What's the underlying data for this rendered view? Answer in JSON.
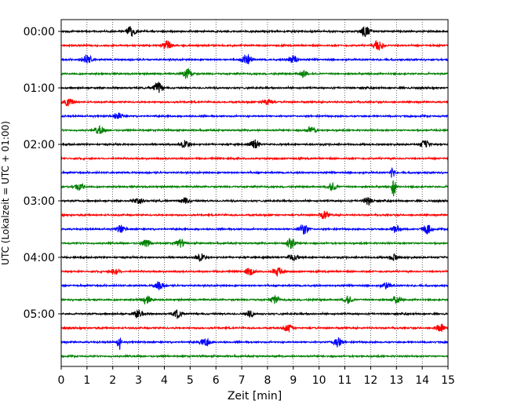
{
  "chart_data": {
    "type": "line",
    "xlabel": "Zeit  [min]",
    "ylabel": "UTC (Lokalzeit = UTC + 01:00)",
    "xlim": [
      0,
      15
    ],
    "x_ticks": [
      0,
      1,
      2,
      3,
      4,
      5,
      6,
      7,
      8,
      9,
      10,
      11,
      12,
      13,
      14,
      15
    ],
    "x_tick_labels": [
      "0",
      "1",
      "2",
      "3",
      "4",
      "5",
      "6",
      "7",
      "8",
      "9",
      "10",
      "11",
      "12",
      "13",
      "14",
      "15"
    ],
    "y_tick_labels": [
      "00:00",
      "01:00",
      "02:00",
      "03:00",
      "04:00",
      "05:00"
    ],
    "grid": "vertical dotted at each minute",
    "traces_per_hour": 4,
    "trace_minutes": 15,
    "trace_colors": [
      "#000000",
      "#ff0000",
      "#0000ff",
      "#008000"
    ],
    "series": [
      {
        "start": "00:00",
        "color": "#000000",
        "events": [
          [
            2.7,
            0.5
          ],
          [
            11.8,
            0.5
          ]
        ]
      },
      {
        "start": "00:15",
        "color": "#ff0000",
        "events": [
          [
            4.1,
            0.45
          ],
          [
            12.3,
            0.55
          ]
        ]
      },
      {
        "start": "00:30",
        "color": "#0000ff",
        "events": [
          [
            1.0,
            0.5
          ],
          [
            7.2,
            0.6
          ],
          [
            9.0,
            0.4
          ]
        ]
      },
      {
        "start": "00:45",
        "color": "#008000",
        "events": [
          [
            4.9,
            0.5
          ],
          [
            9.4,
            0.3
          ]
        ]
      },
      {
        "start": "01:00",
        "color": "#000000",
        "events": [
          [
            3.75,
            0.55
          ]
        ]
      },
      {
        "start": "01:15",
        "color": "#ff0000",
        "events": [
          [
            0.3,
            0.4
          ],
          [
            8.0,
            0.35
          ]
        ]
      },
      {
        "start": "01:30",
        "color": "#0000ff",
        "events": [
          [
            2.2,
            0.3
          ]
        ]
      },
      {
        "start": "01:45",
        "color": "#008000",
        "events": [
          [
            1.5,
            0.4
          ],
          [
            9.7,
            0.35
          ]
        ]
      },
      {
        "start": "02:00",
        "color": "#000000",
        "events": [
          [
            4.8,
            0.4
          ],
          [
            7.5,
            0.45
          ],
          [
            14.1,
            0.35
          ]
        ]
      },
      {
        "start": "02:15",
        "color": "#ff0000",
        "events": []
      },
      {
        "start": "02:30",
        "color": "#0000ff",
        "events": [
          [
            12.85,
            0.7
          ]
        ]
      },
      {
        "start": "02:45",
        "color": "#008000",
        "events": [
          [
            0.7,
            0.35
          ],
          [
            10.5,
            0.35
          ],
          [
            12.9,
            1.2
          ]
        ]
      },
      {
        "start": "03:00",
        "color": "#000000",
        "events": [
          [
            3.0,
            0.3
          ],
          [
            4.8,
            0.3
          ],
          [
            11.9,
            0.35
          ]
        ]
      },
      {
        "start": "03:15",
        "color": "#ff0000",
        "events": [
          [
            10.2,
            0.35
          ]
        ]
      },
      {
        "start": "03:30",
        "color": "#0000ff",
        "events": [
          [
            2.3,
            0.35
          ],
          [
            9.4,
            0.5
          ],
          [
            13.0,
            0.35
          ],
          [
            14.2,
            0.4
          ]
        ]
      },
      {
        "start": "03:45",
        "color": "#008000",
        "events": [
          [
            3.3,
            0.35
          ],
          [
            4.6,
            0.4
          ],
          [
            8.9,
            0.5
          ]
        ]
      },
      {
        "start": "04:00",
        "color": "#000000",
        "events": [
          [
            5.4,
            0.4
          ],
          [
            9.0,
            0.35
          ],
          [
            12.9,
            0.3
          ]
        ]
      },
      {
        "start": "04:15",
        "color": "#ff0000",
        "events": [
          [
            2.1,
            0.3
          ],
          [
            7.3,
            0.35
          ],
          [
            8.4,
            0.45
          ]
        ]
      },
      {
        "start": "04:30",
        "color": "#0000ff",
        "events": [
          [
            3.8,
            0.35
          ],
          [
            12.6,
            0.3
          ]
        ]
      },
      {
        "start": "04:45",
        "color": "#008000",
        "events": [
          [
            3.3,
            0.35
          ],
          [
            8.3,
            0.35
          ],
          [
            11.1,
            0.35
          ],
          [
            13.0,
            0.35
          ]
        ]
      },
      {
        "start": "05:00",
        "color": "#000000",
        "events": [
          [
            3.0,
            0.4
          ],
          [
            4.5,
            0.35
          ],
          [
            7.3,
            0.3
          ]
        ]
      },
      {
        "start": "05:15",
        "color": "#ff0000",
        "events": [
          [
            8.8,
            0.35
          ],
          [
            14.7,
            0.35
          ]
        ]
      },
      {
        "start": "05:30",
        "color": "#0000ff",
        "events": [
          [
            2.25,
            0.8
          ],
          [
            5.6,
            0.4
          ],
          [
            10.7,
            0.5
          ]
        ]
      },
      {
        "start": "05:45",
        "color": "#008000",
        "events": []
      }
    ]
  }
}
